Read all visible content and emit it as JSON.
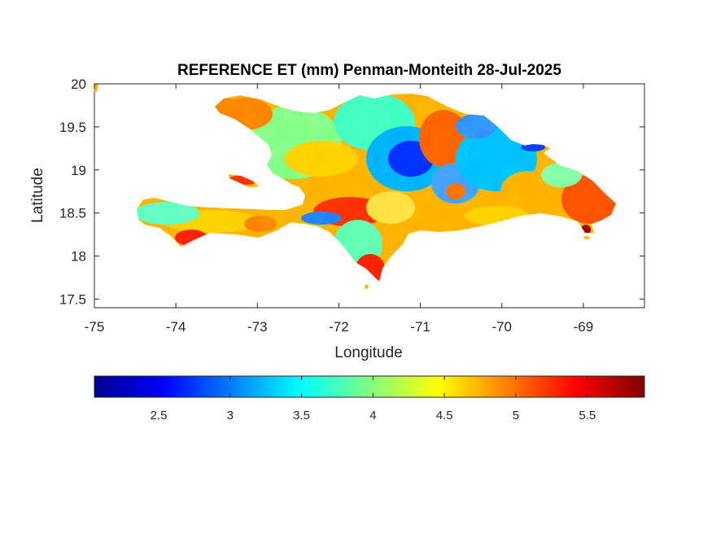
{
  "chart_data": {
    "type": "heatmap",
    "title": "REFERENCE ET (mm) Penman-Monteith 28-Jul-2025",
    "xlabel": "Longitude",
    "ylabel": "Latitude",
    "x_ticks": [
      "-75",
      "-74",
      "-73",
      "-72",
      "-71",
      "-70",
      "-69"
    ],
    "y_ticks": [
      "20",
      "19.5",
      "19",
      "18.5",
      "18",
      "17.5"
    ],
    "xlim": [
      -75,
      -68.25
    ],
    "ylim": [
      17.4,
      20
    ],
    "colorbar": {
      "colormap": "jet",
      "range": [
        2.05,
        5.9
      ],
      "ticks": [
        "2.5",
        "3",
        "3.5",
        "4",
        "4.5",
        "5",
        "5.5"
      ],
      "placement": "bottom"
    },
    "grid": false
  }
}
